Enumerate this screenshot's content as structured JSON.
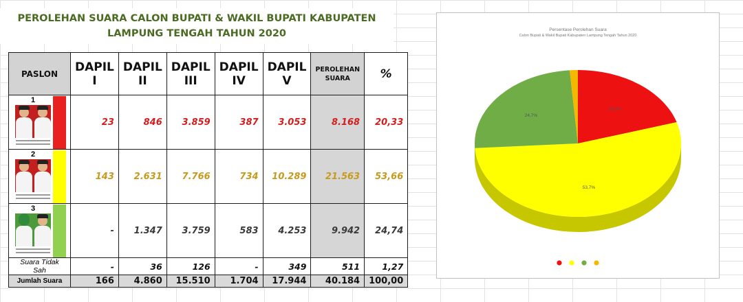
{
  "heading": {
    "line1": "PEROLEHAN SUARA CALON BUPATI & WAKIL BUPATI KABUPATEN",
    "line2": "LAMPUNG TENGAH TAHUN 2020"
  },
  "table": {
    "headers": {
      "paslon": "PASLON",
      "dapil": [
        {
          "word": "DAPIL",
          "num": "I"
        },
        {
          "word": "DAPIL",
          "num": "II"
        },
        {
          "word": "DAPIL",
          "num": "III"
        },
        {
          "word": "DAPIL",
          "num": "IV"
        },
        {
          "word": "DAPIL",
          "num": "V"
        }
      ],
      "perolehan_1": "PEROLEHAN",
      "perolehan_2": "SUARA",
      "percent": "%"
    },
    "rows": [
      {
        "no": "1",
        "color": "#e8201f",
        "values": [
          "23",
          "846",
          "3.859",
          "387",
          "3.053"
        ],
        "total": "8.168",
        "percent": "20,33"
      },
      {
        "no": "2",
        "color": "#ffff00",
        "values": [
          "143",
          "2.631",
          "7.766",
          "734",
          "10.289"
        ],
        "total": "21.563",
        "percent": "53,66"
      },
      {
        "no": "3",
        "color": "#92d050",
        "values": [
          "-",
          "1.347",
          "3.759",
          "583",
          "4.253"
        ],
        "total": "9.942",
        "percent": "24,74"
      }
    ],
    "tidak_sah": {
      "label": "Suara Tidak Sah",
      "values": [
        "-",
        "36",
        "126",
        "-",
        "349"
      ],
      "total": "511",
      "percent": "1,27"
    },
    "jumlah": {
      "label": "Jumlah Suara",
      "values": [
        "166",
        "4.860",
        "15.510",
        "1.704",
        "17.944"
      ],
      "total": "40.184",
      "percent": "100,00"
    }
  },
  "chart_data": {
    "type": "pie",
    "title": "Persentase Perolehan Suara",
    "subtitle": "Calon Bupati & Wakil Bupati Kabupaten Lampung Tengah Tahun 2020",
    "slices": [
      {
        "value": 20.33,
        "label": "20,3%",
        "color": "#ee1111"
      },
      {
        "value": 53.66,
        "label": "53,7%",
        "color": "#ffff00"
      },
      {
        "value": 24.74,
        "label": "24,7%",
        "color": "#70ad47"
      },
      {
        "value": 1.27,
        "label": "",
        "color": "#f4b800"
      }
    ],
    "legend_position": "bottom"
  }
}
